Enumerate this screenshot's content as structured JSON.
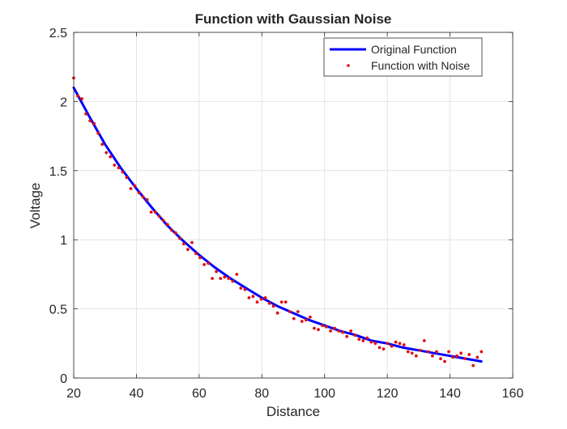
{
  "chart_data": {
    "type": "line",
    "title": "Function with Gaussian Noise",
    "xlabel": "Distance",
    "ylabel": "Voltage",
    "xlim": [
      20,
      160
    ],
    "ylim": [
      0,
      2.5
    ],
    "xticks": [
      20,
      40,
      60,
      80,
      100,
      120,
      140,
      160
    ],
    "yticks": [
      0,
      0.5,
      1,
      1.5,
      2,
      2.5
    ],
    "xtick_labels": [
      "20",
      "40",
      "60",
      "80",
      "100",
      "120",
      "140",
      "160"
    ],
    "ytick_labels": [
      "0",
      "0.5",
      "1",
      "1.5",
      "2",
      "2.5"
    ],
    "grid": true,
    "legend_position": "top-right",
    "series": [
      {
        "name": "Original Function",
        "style": "line",
        "color": "#0000ff",
        "x": [
          20,
          25,
          30,
          35,
          40,
          45,
          50,
          55,
          60,
          65,
          70,
          75,
          80,
          85,
          90,
          95,
          100,
          105,
          110,
          115,
          120,
          125,
          130,
          135,
          140,
          145,
          150
        ],
        "y": [
          2.1,
          1.89,
          1.69,
          1.52,
          1.37,
          1.23,
          1.1,
          0.99,
          0.89,
          0.8,
          0.72,
          0.65,
          0.58,
          0.52,
          0.47,
          0.42,
          0.38,
          0.34,
          0.31,
          0.27,
          0.25,
          0.22,
          0.2,
          0.18,
          0.16,
          0.14,
          0.12
        ]
      },
      {
        "name": "Function with Noise",
        "style": "points",
        "color": "#e01010",
        "x": [
          20,
          21.3,
          22.6,
          23.9,
          25.2,
          26.5,
          27.8,
          29.1,
          30.4,
          31.7,
          33,
          34.3,
          35.6,
          36.9,
          38.2,
          39.5,
          40.8,
          42.1,
          43.4,
          44.7,
          46,
          47.3,
          48.6,
          49.9,
          51.2,
          52.5,
          53.8,
          55.1,
          56.4,
          57.7,
          59,
          60.3,
          61.6,
          62.9,
          64.2,
          65.5,
          66.8,
          68.1,
          69.4,
          70.7,
          72,
          73.3,
          74.6,
          75.9,
          77.2,
          78.5,
          79.8,
          81.1,
          82.4,
          83.7,
          85,
          86.3,
          87.6,
          88.9,
          90.2,
          91.5,
          92.8,
          94.1,
          95.4,
          96.7,
          98,
          99.3,
          100.6,
          101.9,
          103.2,
          104.5,
          105.8,
          107.1,
          108.4,
          109.7,
          111,
          112.3,
          113.6,
          114.9,
          116.2,
          117.5,
          118.8,
          120.1,
          121.4,
          122.7,
          124,
          125.3,
          126.6,
          127.9,
          129.2,
          130.5,
          131.8,
          133.1,
          134.4,
          135.7,
          137,
          138.3,
          139.6,
          140.9,
          142.2,
          143.5,
          144.8,
          146.1,
          147.4,
          148.7,
          150
        ],
        "y": [
          2.17,
          2.04,
          2.02,
          1.91,
          1.86,
          1.84,
          1.77,
          1.69,
          1.63,
          1.6,
          1.54,
          1.52,
          1.49,
          1.45,
          1.37,
          1.39,
          1.34,
          1.31,
          1.29,
          1.2,
          1.2,
          1.17,
          1.14,
          1.11,
          1.07,
          1.05,
          1.01,
          0.97,
          0.93,
          0.98,
          0.9,
          0.87,
          0.82,
          0.83,
          0.72,
          0.77,
          0.72,
          0.73,
          0.72,
          0.7,
          0.75,
          0.65,
          0.64,
          0.58,
          0.59,
          0.55,
          0.57,
          0.58,
          0.54,
          0.52,
          0.47,
          0.55,
          0.55,
          0.48,
          0.43,
          0.48,
          0.41,
          0.42,
          0.44,
          0.36,
          0.35,
          0.38,
          0.37,
          0.34,
          0.36,
          0.34,
          0.33,
          0.3,
          0.34,
          0.31,
          0.28,
          0.27,
          0.29,
          0.26,
          0.25,
          0.22,
          0.21,
          0.25,
          0.23,
          0.26,
          0.25,
          0.24,
          0.19,
          0.18,
          0.16,
          0.2,
          0.27,
          0.19,
          0.16,
          0.19,
          0.14,
          0.12,
          0.19,
          0.15,
          0.16,
          0.18,
          0.14,
          0.17,
          0.09,
          0.15,
          0.19
        ]
      }
    ]
  }
}
